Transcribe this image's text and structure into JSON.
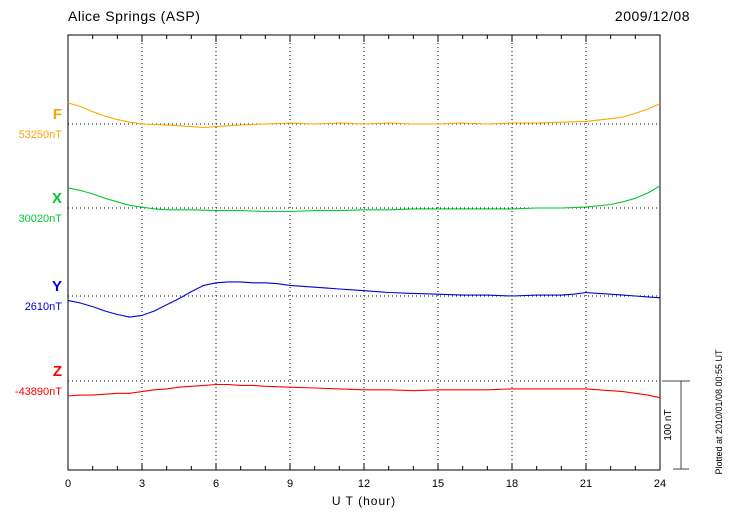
{
  "chart_data": {
    "type": "line",
    "title": "Alice Springs (ASP)",
    "date": "2009/12/08",
    "xlabel": "U T (hour)",
    "xlim": [
      0,
      24
    ],
    "x_major_ticks": [
      0,
      3,
      6,
      9,
      12,
      15,
      18,
      21,
      24
    ],
    "x_minor_step": 1,
    "grid": "dotted vertical lines every 3 hours; dotted horizontal baseline per component",
    "scale_bar": {
      "label": "100 nT",
      "nT": 100
    },
    "plotted_at": "Plotted at 2010/01/08 00:55 UT",
    "series": [
      {
        "name": "F",
        "baseline_label": "53250nT",
        "color": "#FFA500",
        "baseline_frac": 0.2046,
        "x": [
          0,
          0.5,
          1,
          1.5,
          2,
          2.5,
          3,
          4,
          5,
          5.5,
          6,
          7,
          8,
          9,
          10,
          11,
          12,
          13,
          14,
          15,
          16,
          17,
          18,
          19,
          20,
          21,
          22,
          22.5,
          23,
          23.5,
          24
        ],
        "dev_nT": [
          24,
          20,
          14,
          9,
          5,
          2,
          0,
          -1,
          -3,
          -4,
          -3,
          -1,
          0,
          1,
          0,
          1,
          0,
          1,
          0,
          0,
          1,
          0,
          1,
          1,
          2,
          3,
          6,
          8,
          12,
          17,
          23
        ]
      },
      {
        "name": "X",
        "baseline_label": "30020nT",
        "color": "#00C832",
        "baseline_frac": 0.3977,
        "x": [
          0,
          0.5,
          1,
          1.5,
          2,
          2.5,
          3,
          3.5,
          4,
          5,
          6,
          7,
          8,
          9,
          10,
          11,
          12,
          13,
          14,
          15,
          16,
          17,
          18,
          19,
          20,
          21,
          22,
          22.5,
          23,
          23.5,
          24
        ],
        "dev_nT": [
          23,
          20,
          16,
          11,
          7,
          3,
          1,
          -1,
          -2,
          -2,
          -3,
          -3,
          -4,
          -4,
          -3,
          -3,
          -2,
          -2,
          -1,
          -1,
          -1,
          -1,
          -1,
          0,
          0,
          1,
          4,
          7,
          11,
          17,
          25
        ]
      },
      {
        "name": "Y",
        "baseline_label": "2610nT",
        "color": "#0000DD",
        "baseline_frac": 0.6,
        "x": [
          0,
          0.5,
          1,
          1.5,
          2,
          2.5,
          3,
          3.5,
          4,
          4.5,
          5,
          5.5,
          6,
          6.5,
          7,
          7.5,
          8,
          8.5,
          9,
          9.5,
          10,
          10.5,
          11,
          11.5,
          12,
          12.5,
          13,
          14,
          15,
          16,
          17,
          18,
          19,
          20,
          20.5,
          21,
          21.5,
          22,
          22.5,
          23,
          23.5,
          24
        ],
        "dev_nT": [
          -5,
          -8,
          -12,
          -17,
          -21,
          -24,
          -22,
          -17,
          -10,
          -3,
          5,
          12,
          15,
          16,
          16,
          15,
          15,
          14,
          12,
          11,
          10,
          9,
          8,
          7,
          6,
          5,
          4,
          3,
          2,
          1,
          1,
          0,
          1,
          1,
          2,
          4,
          3,
          2,
          1,
          0,
          -1,
          -2
        ]
      },
      {
        "name": "Z",
        "baseline_label": "-43890nT",
        "color": "#FF0000",
        "baseline_frac": 0.7954,
        "x": [
          0,
          0.5,
          1,
          1.5,
          2,
          2.5,
          3,
          3.5,
          4,
          4.5,
          5,
          5.5,
          6,
          6.5,
          7,
          7.5,
          8,
          9,
          10,
          11,
          12,
          13,
          14,
          15,
          16,
          17,
          18,
          19,
          20,
          21,
          21.5,
          22,
          22.5,
          23,
          23.5,
          24
        ],
        "dev_nT": [
          -17,
          -16,
          -16,
          -15,
          -14,
          -14,
          -12,
          -10,
          -9,
          -7,
          -6,
          -5,
          -4,
          -4,
          -5,
          -5,
          -6,
          -7,
          -8,
          -9,
          -10,
          -10,
          -11,
          -10,
          -10,
          -10,
          -9,
          -9,
          -9,
          -9,
          -10,
          -11,
          -12,
          -14,
          -16,
          -19
        ]
      }
    ]
  }
}
